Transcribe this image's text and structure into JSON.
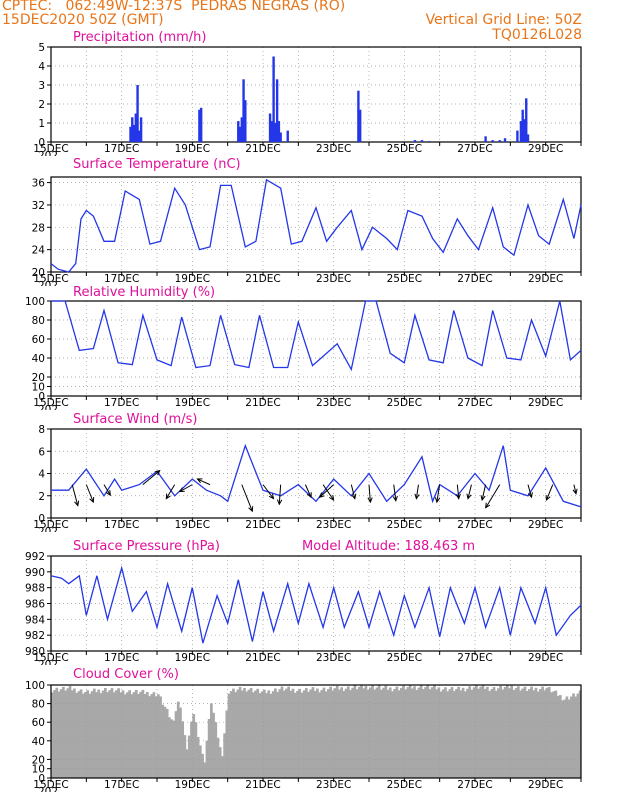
{
  "header": {
    "line1": "CPTEC:   062:49W-12:37S  PEDRAS NEGRAS (RO)",
    "line2_left": "15DEC2020 50Z (GMT)",
    "line2_right": "Vertical Grid Line: 50Z",
    "line3_right": "TQ0126L028"
  },
  "colors": {
    "header": "#e8751a",
    "title": "#e0109a",
    "series": "#2437e8",
    "cloud": "#a8a8a8",
    "wind_arrow": "#000000"
  },
  "x_axis": {
    "tick_labels": [
      "15DEC",
      "17DEC",
      "19DEC",
      "21DEC",
      "23DEC",
      "25DEC",
      "27DEC",
      "29DEC"
    ],
    "cut_label": "202"
  },
  "chart_data": [
    {
      "type": "bar",
      "title": "Precipitation (mm/h)",
      "ylim": [
        0,
        5
      ],
      "yticks": [
        0,
        1,
        2,
        3,
        4,
        5
      ],
      "x": [
        2.25,
        2.3,
        2.35,
        2.4,
        2.45,
        2.5,
        2.55,
        4.2,
        4.25,
        5.3,
        5.35,
        5.4,
        5.45,
        5.5,
        6.2,
        6.25,
        6.3,
        6.35,
        6.4,
        6.45,
        6.5,
        6.7,
        8.7,
        8.75,
        10.3,
        10.5,
        10.7,
        12.3,
        12.5,
        12.7,
        12.85,
        13.2,
        13.3,
        13.35,
        13.4,
        13.45,
        13.5
      ],
      "values": [
        0.8,
        1.3,
        0.9,
        1.5,
        3.0,
        0.6,
        1.3,
        1.7,
        1.8,
        1.1,
        0.8,
        1.3,
        3.3,
        2.2,
        1.5,
        1.1,
        4.5,
        1.0,
        3.3,
        1.1,
        0.5,
        0.6,
        2.7,
        1.7,
        0.1,
        0.1,
        0.05,
        0.3,
        0.1,
        0.1,
        0.2,
        0.6,
        1.1,
        1.7,
        1.2,
        2.3,
        0.4
      ],
      "grid": true
    },
    {
      "type": "line",
      "title": "Surface Temperature (nC)",
      "ylim": [
        20,
        37
      ],
      "yticks": [
        20,
        24,
        28,
        32,
        36
      ],
      "x": [
        0,
        0.2,
        0.5,
        0.7,
        0.85,
        1,
        1.2,
        1.5,
        1.8,
        2.1,
        2.5,
        2.8,
        3.1,
        3.5,
        3.8,
        4.2,
        4.5,
        4.8,
        5.1,
        5.5,
        5.8,
        6.1,
        6.5,
        6.8,
        7.1,
        7.5,
        7.8,
        8.1,
        8.5,
        8.8,
        9.1,
        9.5,
        9.8,
        10.1,
        10.5,
        10.8,
        11.1,
        11.5,
        11.8,
        12.1,
        12.5,
        12.8,
        13.1,
        13.5,
        13.8,
        14.1,
        14.5,
        14.8,
        15
      ],
      "y": [
        21.5,
        20.5,
        20,
        21.5,
        29.5,
        31,
        30,
        25.5,
        25.5,
        34.5,
        33,
        25,
        25.5,
        35,
        32,
        24,
        24.5,
        35.5,
        35.5,
        24.5,
        25.5,
        36.5,
        35,
        25,
        25.5,
        31.5,
        25.5,
        28,
        31,
        24,
        28,
        26,
        24,
        31,
        30,
        26,
        23.5,
        29.5,
        26.5,
        24,
        31.5,
        24.5,
        23,
        32,
        26.5,
        25,
        33,
        26,
        32
      ],
      "grid": true
    },
    {
      "type": "line",
      "title": "Relative Humidity (%)",
      "ylim": [
        0,
        100
      ],
      "yticks": [
        0,
        10,
        20,
        40,
        60,
        80,
        100
      ],
      "x": [
        0,
        0.4,
        0.8,
        1.2,
        1.5,
        1.9,
        2.3,
        2.6,
        3.0,
        3.4,
        3.7,
        4.1,
        4.5,
        4.8,
        5.2,
        5.6,
        5.9,
        6.3,
        6.7,
        7.0,
        7.4,
        7.8,
        8.1,
        8.5,
        8.9,
        9.2,
        9.6,
        10.0,
        10.3,
        10.7,
        11.1,
        11.4,
        11.8,
        12.2,
        12.5,
        12.9,
        13.3,
        13.6,
        14.0,
        14.4,
        14.7,
        15
      ],
      "y": [
        100,
        100,
        48,
        50,
        90,
        35,
        33,
        85,
        38,
        32,
        83,
        30,
        32,
        85,
        33,
        30,
        85,
        30,
        30,
        78,
        32,
        45,
        55,
        28,
        100,
        100,
        45,
        35,
        85,
        38,
        35,
        90,
        40,
        32,
        90,
        40,
        38,
        80,
        42,
        100,
        38,
        48
      ],
      "grid": true
    },
    {
      "type": "line",
      "title": "Surface Wind (m/s)",
      "ylim": [
        0,
        8
      ],
      "yticks": [
        0,
        2,
        4,
        6,
        8
      ],
      "x": [
        0,
        0.5,
        1.0,
        1.5,
        1.8,
        2.0,
        2.5,
        3.0,
        3.5,
        4.0,
        4.4,
        4.8,
        5.0,
        5.5,
        6.0,
        6.5,
        7.0,
        7.5,
        8.0,
        8.5,
        9.0,
        9.5,
        10.0,
        10.5,
        10.8,
        11.0,
        11.5,
        12.0,
        12.4,
        12.8,
        13.0,
        13.5,
        14.0,
        14.5,
        15
      ],
      "y": [
        2.5,
        2.5,
        4.4,
        2.0,
        3.5,
        2.5,
        3.0,
        4.2,
        2.0,
        3.5,
        2.5,
        2.0,
        1.5,
        6.5,
        2.5,
        2.0,
        3.0,
        1.5,
        3.5,
        2.0,
        4.0,
        1.5,
        3.0,
        5.5,
        1.5,
        3.0,
        2.0,
        4.0,
        2.5,
        6.5,
        2.5,
        2.0,
        4.5,
        1.5,
        1.0
      ],
      "arrows": [
        {
          "x": 0.6,
          "dx": 0.8,
          "dy": -3.0
        },
        {
          "x": 1.0,
          "dx": 1.0,
          "dy": -2.5
        },
        {
          "x": 1.5,
          "dx": 0.9,
          "dy": -1.5
        },
        {
          "x": 2.6,
          "dx": 2.4,
          "dy": 2.0
        },
        {
          "x": 3.5,
          "dx": -1.2,
          "dy": -2.0
        },
        {
          "x": 4.0,
          "dx": -1.8,
          "dy": -1.0
        },
        {
          "x": 4.5,
          "dx": -1.8,
          "dy": 0.8
        },
        {
          "x": 5.4,
          "dx": 1.5,
          "dy": -3.8
        },
        {
          "x": 6.0,
          "dx": 1.5,
          "dy": -2.0
        },
        {
          "x": 6.5,
          "dx": -0.2,
          "dy": -2.8
        },
        {
          "x": 7.2,
          "dx": 0.8,
          "dy": -1.8
        },
        {
          "x": 7.7,
          "dx": 1.5,
          "dy": -2.2
        },
        {
          "x": 8.0,
          "dx": -2.0,
          "dy": -1.8
        },
        {
          "x": 8.5,
          "dx": 0.5,
          "dy": -2.0
        },
        {
          "x": 9.0,
          "dx": 0.2,
          "dy": -2.5
        },
        {
          "x": 9.7,
          "dx": 0.3,
          "dy": -2.3
        },
        {
          "x": 10.4,
          "dx": -0.3,
          "dy": -2.0
        },
        {
          "x": 11.0,
          "dx": -0.4,
          "dy": -2.5
        },
        {
          "x": 11.5,
          "dx": 0.2,
          "dy": -2.0
        },
        {
          "x": 11.9,
          "dx": -0.5,
          "dy": -2.0
        },
        {
          "x": 12.3,
          "dx": -0.5,
          "dy": -2.2
        },
        {
          "x": 12.7,
          "dx": -2.0,
          "dy": -3.3
        },
        {
          "x": 13.5,
          "dx": 0.5,
          "dy": -1.8
        },
        {
          "x": 14.2,
          "dx": -0.9,
          "dy": -2.2
        },
        {
          "x": 14.8,
          "dx": 0.3,
          "dy": -1.3
        }
      ],
      "grid": true
    },
    {
      "type": "line",
      "title": "Surface Pressure (hPa)",
      "annotation": "Model Altitude: 188.463  m",
      "ylim": [
        980,
        992
      ],
      "yticks": [
        980,
        982,
        984,
        986,
        988,
        990,
        992
      ],
      "x": [
        0,
        0.3,
        0.5,
        0.8,
        1.0,
        1.3,
        1.6,
        2.0,
        2.3,
        2.7,
        3.0,
        3.3,
        3.7,
        4.0,
        4.3,
        4.7,
        5.0,
        5.3,
        5.7,
        6.0,
        6.3,
        6.7,
        7.0,
        7.3,
        7.7,
        8.0,
        8.3,
        8.7,
        9.0,
        9.3,
        9.7,
        10.0,
        10.3,
        10.7,
        11.0,
        11.3,
        11.7,
        12.0,
        12.3,
        12.7,
        13.0,
        13.3,
        13.7,
        14.0,
        14.3,
        14.7,
        15
      ],
      "y": [
        989.5,
        989.2,
        988.5,
        989.5,
        984.5,
        989.5,
        984.0,
        990.5,
        985.0,
        987.5,
        983.0,
        988.5,
        982.5,
        988.0,
        981.0,
        987.0,
        983.5,
        989.0,
        981.2,
        987.5,
        982.5,
        988.5,
        983.5,
        988.5,
        983.0,
        988.0,
        983.0,
        987.5,
        983.0,
        987.5,
        982.0,
        987.0,
        983.0,
        988.0,
        981.8,
        988.0,
        983.5,
        988.0,
        983.0,
        988.0,
        982.0,
        988.0,
        983.5,
        988.0,
        982.0,
        984.5,
        985.8
      ],
      "grid": true
    },
    {
      "type": "area",
      "title": "Cloud Cover (%)",
      "ylim": [
        0,
        100
      ],
      "yticks": [
        0,
        10,
        20,
        40,
        60,
        80,
        100
      ],
      "x": [
        0,
        0.5,
        1.0,
        1.5,
        2.0,
        2.5,
        3.0,
        3.4,
        3.6,
        3.8,
        4.0,
        4.3,
        4.5,
        4.8,
        5.0,
        5.5,
        6.0,
        6.5,
        7.0,
        7.5,
        8.0,
        8.5,
        9.0,
        9.5,
        10.0,
        10.5,
        11.0,
        11.5,
        12.0,
        12.5,
        13.0,
        13.5,
        14.0,
        14.5,
        15
      ],
      "y": [
        95,
        96,
        92,
        95,
        93,
        92,
        90,
        60,
        85,
        30,
        70,
        15,
        82,
        22,
        93,
        96,
        92,
        96,
        94,
        95,
        96,
        97,
        98,
        96,
        97,
        98,
        96,
        95,
        98,
        96,
        98,
        95,
        97,
        85,
        92
      ],
      "grid": true
    }
  ]
}
